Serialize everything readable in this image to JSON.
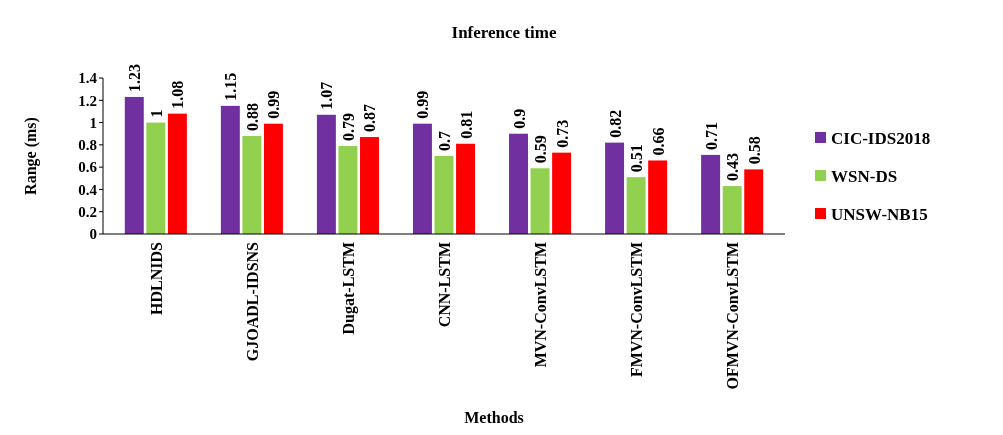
{
  "chart_data": {
    "type": "bar",
    "title": "Inference time",
    "xlabel": "Methods",
    "ylabel": "Range (ms)",
    "categories": [
      "HDLNIDS",
      "GJOADL-IDSNS",
      "Dugat-LSTM",
      "CNN-LSTM",
      "MVN-ConvLSTM",
      "FMVN-ConvLSTM",
      "OFMVN-ConvLSTM"
    ],
    "series": [
      {
        "name": "CIC-IDS2018",
        "color": "#7030a0",
        "values": [
          1.23,
          1.15,
          1.07,
          0.99,
          0.9,
          0.82,
          0.71
        ]
      },
      {
        "name": "WSN-DS",
        "color": "#92d050",
        "values": [
          1,
          0.88,
          0.79,
          0.7,
          0.59,
          0.51,
          0.43
        ]
      },
      {
        "name": "UNSW-NB15",
        "color": "#ff0000",
        "values": [
          1.08,
          0.99,
          0.87,
          0.81,
          0.73,
          0.66,
          0.58
        ]
      }
    ],
    "ylim": [
      0,
      1.4
    ],
    "yticks": [
      0,
      0.2,
      0.4,
      0.6,
      0.8,
      1,
      1.2,
      1.4
    ],
    "data_labels": true,
    "grid": false,
    "legend": "right"
  }
}
